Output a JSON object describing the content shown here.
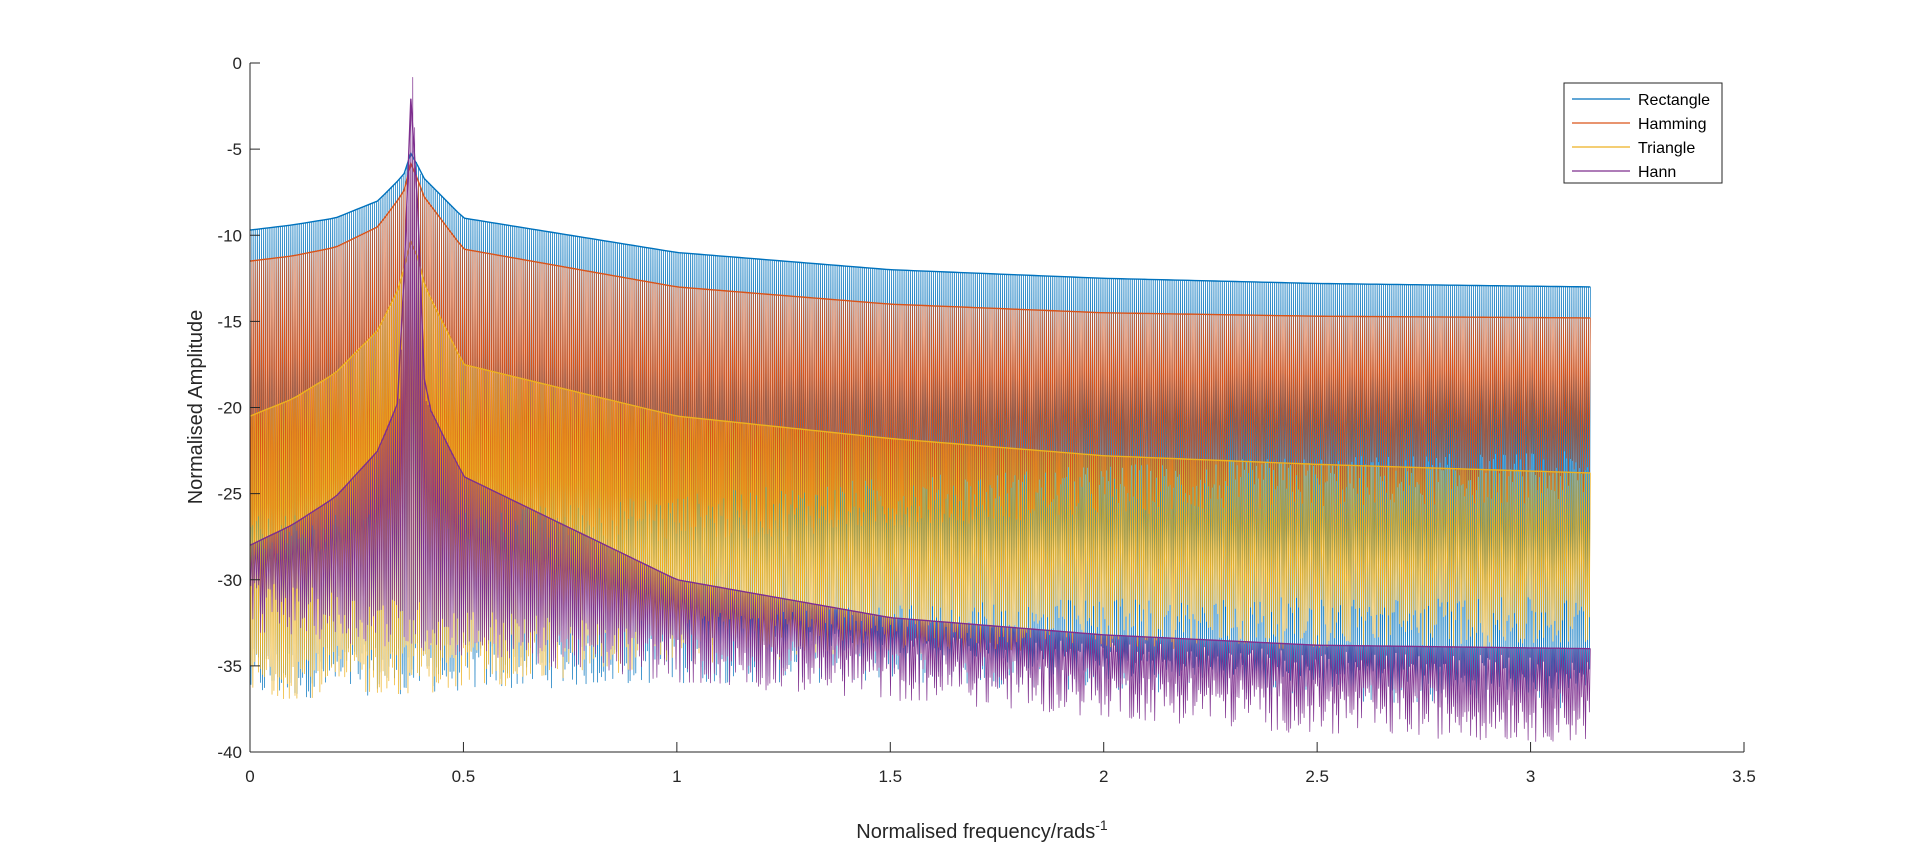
{
  "chart_data": {
    "type": "line",
    "title": "",
    "xlabel": "Normalised frequency/rads",
    "xlabel_superscript": "-1",
    "ylabel": "Normalised Amplitude",
    "xlim": [
      0,
      3.5
    ],
    "ylim": [
      -40,
      0
    ],
    "xticks": [
      0,
      0.5,
      1,
      1.5,
      2,
      2.5,
      3,
      3.5
    ],
    "xtick_labels": [
      "0",
      "0.5",
      "1",
      "1.5",
      "2",
      "2.5",
      "3",
      "3.5"
    ],
    "yticks": [
      0,
      -5,
      -10,
      -15,
      -20,
      -25,
      -30,
      -35,
      -40
    ],
    "ytick_labels": [
      "0",
      "-5",
      "-10",
      "-15",
      "-20",
      "-25",
      "-30",
      "-35",
      "-40"
    ],
    "grid": false,
    "legend_position": "top-right",
    "peak_frequency": 0.38,
    "x_max": 3.14,
    "series": [
      {
        "name": "Rectangle",
        "color": "#0072BD",
        "upper_envelope": {
          "x": [
            0,
            0.1,
            0.2,
            0.3,
            0.36,
            0.38,
            0.4,
            0.5,
            1.0,
            1.5,
            2.0,
            2.5,
            3.14
          ],
          "y": [
            -9.7,
            -9.4,
            -9.0,
            -8.0,
            -6.5,
            -5.0,
            -6.5,
            -9.0,
            -11.0,
            -12.0,
            -12.5,
            -12.8,
            -13.0
          ]
        },
        "lower_envelope": {
          "x": [
            0,
            0.5,
            1.0,
            1.5,
            2.0,
            2.5,
            3.14
          ],
          "y": [
            -35.5,
            -35,
            -34.5,
            -34.5,
            -35,
            -35.5,
            -36
          ]
        }
      },
      {
        "name": "Hamming",
        "color": "#D95319",
        "upper_envelope": {
          "x": [
            0,
            0.1,
            0.2,
            0.3,
            0.36,
            0.38,
            0.4,
            0.5,
            1.0,
            1.5,
            2.0,
            2.5,
            3.14
          ],
          "y": [
            -11.5,
            -11.2,
            -10.7,
            -9.5,
            -7.5,
            -5.5,
            -7.5,
            -10.8,
            -13.0,
            -14.0,
            -14.5,
            -14.7,
            -14.8
          ]
        },
        "lower_envelope": {
          "x": [
            0,
            0.5,
            1.0,
            1.5,
            2.0,
            2.5,
            3.14
          ],
          "y": [
            -27.8,
            -27.5,
            -26.5,
            -25.5,
            -24.8,
            -24.3,
            -24.0
          ]
        }
      },
      {
        "name": "Triangle",
        "color": "#EDB120",
        "upper_envelope": {
          "x": [
            0,
            0.1,
            0.2,
            0.3,
            0.35,
            0.38,
            0.41,
            0.5,
            1.0,
            1.5,
            2.0,
            2.5,
            3.14
          ],
          "y": [
            -20.5,
            -19.5,
            -18.0,
            -15.5,
            -13.0,
            -10.0,
            -13.0,
            -17.5,
            -20.5,
            -21.8,
            -22.8,
            -23.3,
            -23.8
          ]
        },
        "lower_envelope": {
          "x": [
            0,
            0.5,
            1.0,
            1.5,
            2.0,
            2.5,
            3.14
          ],
          "y": [
            -35.5,
            -35,
            -33.5,
            -33,
            -32.5,
            -32.5,
            -32.5
          ]
        }
      },
      {
        "name": "Hann",
        "color": "#7E2F8E",
        "upper_envelope": {
          "x": [
            0,
            0.1,
            0.2,
            0.3,
            0.35,
            0.38,
            0.41,
            0.5,
            1.0,
            1.5,
            2.0,
            2.5,
            3.14
          ],
          "y": [
            -28.0,
            -26.8,
            -25.2,
            -22.5,
            -19.5,
            0.0,
            -19.5,
            -24.0,
            -30.0,
            -32.2,
            -33.2,
            -33.8,
            -34.0
          ]
        },
        "lower_envelope": {
          "x": [
            0,
            0.5,
            1.0,
            1.5,
            2.0,
            2.5,
            3.14
          ],
          "y": [
            -31.5,
            -33,
            -34.5,
            -35.5,
            -36.5,
            -37.5,
            -38.0
          ]
        }
      }
    ]
  }
}
